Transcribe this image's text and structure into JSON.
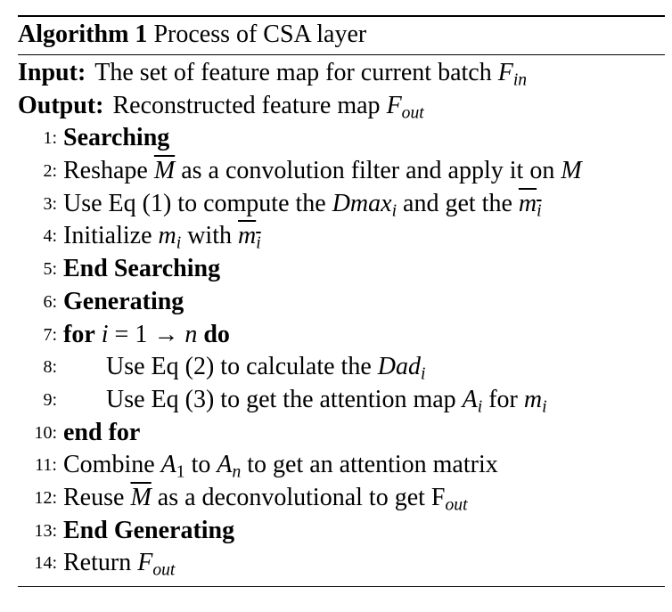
{
  "algorithm": {
    "caption_label": "Algorithm 1",
    "caption_title": "Process of CSA layer",
    "input": {
      "label": "Input:",
      "text": "The set of feature map for current batch ",
      "var": "F",
      "var_sub": "in"
    },
    "output": {
      "label": "Output:",
      "text": "Reconstructed feature map ",
      "var": "F",
      "var_sub": "out"
    },
    "lines": [
      {
        "num": "1:",
        "html": "<span class=\"kw\">Searching</span>",
        "level": 0
      },
      {
        "num": "2:",
        "html": "Reshape <span class=\"m ov\">M</span> as a convolution filter and apply it on <span class=\"m\">M</span>",
        "level": 0
      },
      {
        "num": "3:",
        "html": "Use Eq (1) to compute the <span class=\"m\">Dmax</span><span class=\"sub\">i</span> and get the <span class=\"m ov\">m<span class=\"sub\">i</span></span>",
        "level": 0
      },
      {
        "num": "4:",
        "html": "Initialize <span class=\"m\">m</span><span class=\"sub\">i</span> with <span class=\"m ov\">m<span class=\"sub\">i</span></span>",
        "level": 0
      },
      {
        "num": "5:",
        "html": "<span class=\"kw\">End Searching</span>",
        "level": 0
      },
      {
        "num": "6:",
        "html": "<span class=\"kw\">Generating</span>",
        "level": 0
      },
      {
        "num": "7:",
        "html": "<span class=\"kw\">for</span> <span class=\"m\">i</span> = 1 → <span class=\"m\">n</span> <span class=\"kw\">do</span>",
        "level": 0
      },
      {
        "num": "8:",
        "html": "Use Eq (2) to calculate the <span class=\"m\">Dad</span><span class=\"sub\">i</span>",
        "level": 1
      },
      {
        "num": "9:",
        "html": "Use Eq (3) to get the attention map <span class=\"m\">A</span><span class=\"sub\">i</span> for <span class=\"m\">m</span><span class=\"sub\">i</span>",
        "level": 1
      },
      {
        "num": "10:",
        "html": "<span class=\"kw\">end for</span>",
        "level": 0
      },
      {
        "num": "11:",
        "html": "Combine <span class=\"m\">A</span><span class=\"subr\">1</span> to <span class=\"m\">A</span><span class=\"sub\">n</span> to get an attention matrix",
        "level": 0
      },
      {
        "num": "12:",
        "html": "Reuse <span class=\"m ov\">M</span> as a deconvolutional to get F<span class=\"sub\">out</span>",
        "level": 0
      },
      {
        "num": "13:",
        "html": "<span class=\"kw\">End Generating</span>",
        "level": 0
      },
      {
        "num": "14:",
        "html": "Return <span class=\"m\">F</span><span class=\"sub\">out</span>",
        "level": 0
      }
    ]
  }
}
